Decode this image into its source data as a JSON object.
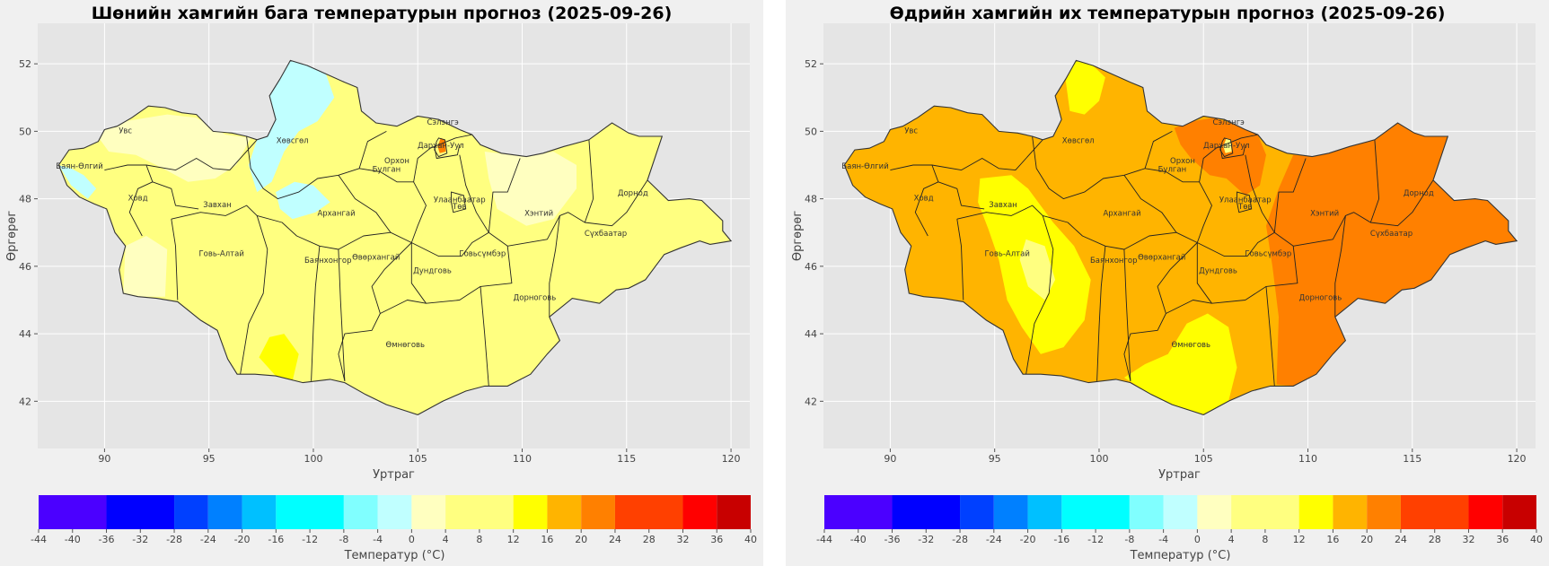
{
  "panels": [
    {
      "title": "Шөнийн хамгийн бага температурын прогноз (2025-09-26)",
      "xlabel": "Уртраг",
      "ylabel": "Өргөрөг",
      "base_fill": "#ffff80",
      "zones": [
        {
          "fill": "#c0ffff",
          "note": "Khovsgol / Darkhad basin"
        },
        {
          "fill": "#c0ffff",
          "note": "Bayan-Olgii west"
        },
        {
          "fill": "#c0ffff",
          "note": "Khangai spot"
        },
        {
          "fill": "#ffffc0",
          "note": "Uvs / Zavkhan / Khovsgol light"
        },
        {
          "fill": "#ffffc0",
          "note": "Khentii light"
        },
        {
          "fill": "#ffffc0",
          "note": "Gobi-Altai west light"
        },
        {
          "fill": "#ffff00",
          "note": "Omnogovi south"
        },
        {
          "fill": "#ff8000",
          "note": "Darkhan-Uul warm spot"
        }
      ]
    },
    {
      "title": "Өдрийн хамгийн их температурын прогноз (2025-09-26)",
      "xlabel": "Уртраг",
      "ylabel": "Өргөрөг",
      "base_fill": "#ffb400",
      "zones": [
        {
          "fill": "#ff8000",
          "note": "East Mongolia"
        },
        {
          "fill": "#ff8000",
          "note": "Selenge / Tov north"
        },
        {
          "fill": "#ffff00",
          "note": "Zavkhan / Govi-Altai band"
        },
        {
          "fill": "#ffff00",
          "note": "Khovsgol north"
        },
        {
          "fill": "#ffff00",
          "note": "Omnogovi south"
        },
        {
          "fill": "#ffff80",
          "note": "Govi-Altai light"
        },
        {
          "fill": "#ffff80",
          "note": "Darkhan light spot"
        }
      ]
    }
  ],
  "regions": [
    "Увс",
    "Баян-Өлгий",
    "Ховд",
    "Хөвсгөл",
    "Завхан",
    "Говь-Алтай",
    "Архангай",
    "Булган",
    "Орхон",
    "Сэлэнгэ",
    "Дархан-Уул",
    "Улаанбаатар",
    "Төв",
    "Баянхонгор",
    "Өвөрхангай",
    "Дундговь",
    "Говьсүмбэр",
    "Хэнтий",
    "Дорнод",
    "Сүхбаатар",
    "Дорноговь",
    "Өмнөговь"
  ],
  "map_axes": {
    "xlim": [
      86.8,
      120.9
    ],
    "ylim": [
      40.6,
      53.2
    ],
    "xticks": [
      "90",
      "95",
      "100",
      "105",
      "110",
      "115",
      "120"
    ],
    "yticks": [
      "42",
      "44",
      "46",
      "48",
      "50",
      "52"
    ],
    "grid": true
  },
  "colorbar": {
    "label": "Температур (°C)",
    "ticks": [
      "-44",
      "-40",
      "-36",
      "-32",
      "-28",
      "-24",
      "-20",
      "-16",
      "-12",
      "-8",
      "-4",
      "0",
      "4",
      "8",
      "12",
      "16",
      "20",
      "24",
      "28",
      "32",
      "36",
      "40"
    ],
    "bins": [
      {
        "from": -44,
        "to": -36,
        "color": "#4b00ff"
      },
      {
        "from": -36,
        "to": -28,
        "color": "#0000ff"
      },
      {
        "from": -28,
        "to": -24,
        "color": "#0040ff"
      },
      {
        "from": -24,
        "to": -20,
        "color": "#0080ff"
      },
      {
        "from": -20,
        "to": -16,
        "color": "#00c0ff"
      },
      {
        "from": -16,
        "to": -8,
        "color": "#00ffff"
      },
      {
        "from": -8,
        "to": -4,
        "color": "#80ffff"
      },
      {
        "from": -4,
        "to": 0,
        "color": "#c0ffff"
      },
      {
        "from": 0,
        "to": 4,
        "color": "#ffffc0"
      },
      {
        "from": 4,
        "to": 12,
        "color": "#ffff80"
      },
      {
        "from": 12,
        "to": 16,
        "color": "#ffff00"
      },
      {
        "from": 16,
        "to": 20,
        "color": "#ffb400"
      },
      {
        "from": 20,
        "to": 24,
        "color": "#ff8000"
      },
      {
        "from": 24,
        "to": 32,
        "color": "#ff4000"
      },
      {
        "from": 32,
        "to": 36,
        "color": "#ff0000"
      },
      {
        "from": 36,
        "to": 40,
        "color": "#c80000"
      }
    ]
  }
}
